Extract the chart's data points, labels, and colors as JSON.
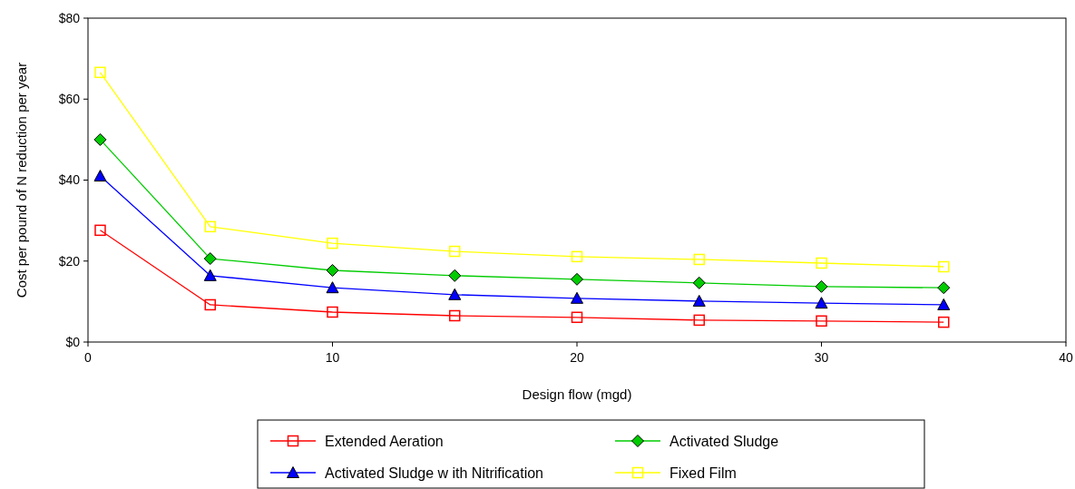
{
  "chart_data": {
    "type": "line",
    "xlabel": "Design flow  (mgd)",
    "ylabel": "Cost per pound of N reduction per year",
    "x": [
      0.5,
      5,
      10,
      15,
      20,
      25,
      30,
      35
    ],
    "xlim": [
      0,
      40
    ],
    "xticks": [
      0,
      10,
      20,
      30,
      40
    ],
    "ylim": [
      0,
      80
    ],
    "yticks": [
      {
        "value": 0,
        "label": "$0"
      },
      {
        "value": 20,
        "label": "$20"
      },
      {
        "value": 40,
        "label": "$40"
      },
      {
        "value": 60,
        "label": "$60"
      },
      {
        "value": 80,
        "label": "$80"
      }
    ],
    "grid": false,
    "legend": "bottom",
    "series": [
      {
        "name": "Extended Aeration",
        "color": "#ff0000",
        "marker": "square",
        "values": [
          27.6,
          9.2,
          7.4,
          6.5,
          6.1,
          5.4,
          5.2,
          4.9
        ]
      },
      {
        "name": "Activated Sludge",
        "color": "#00cc00",
        "marker": "diamond",
        "values": [
          50,
          20.6,
          17.7,
          16.4,
          15.5,
          14.6,
          13.7,
          13.4
        ]
      },
      {
        "name": "Activated Sludge w ith Nitrification",
        "color": "#0000ff",
        "marker": "triangle",
        "values": [
          41,
          16.4,
          13.4,
          11.7,
          10.8,
          10.1,
          9.6,
          9.2
        ]
      },
      {
        "name": "Fixed Film",
        "color": "#ffff00",
        "marker": "square",
        "values": [
          66.6,
          28.5,
          24.4,
          22.4,
          21.1,
          20.4,
          19.5,
          18.6
        ]
      }
    ]
  }
}
